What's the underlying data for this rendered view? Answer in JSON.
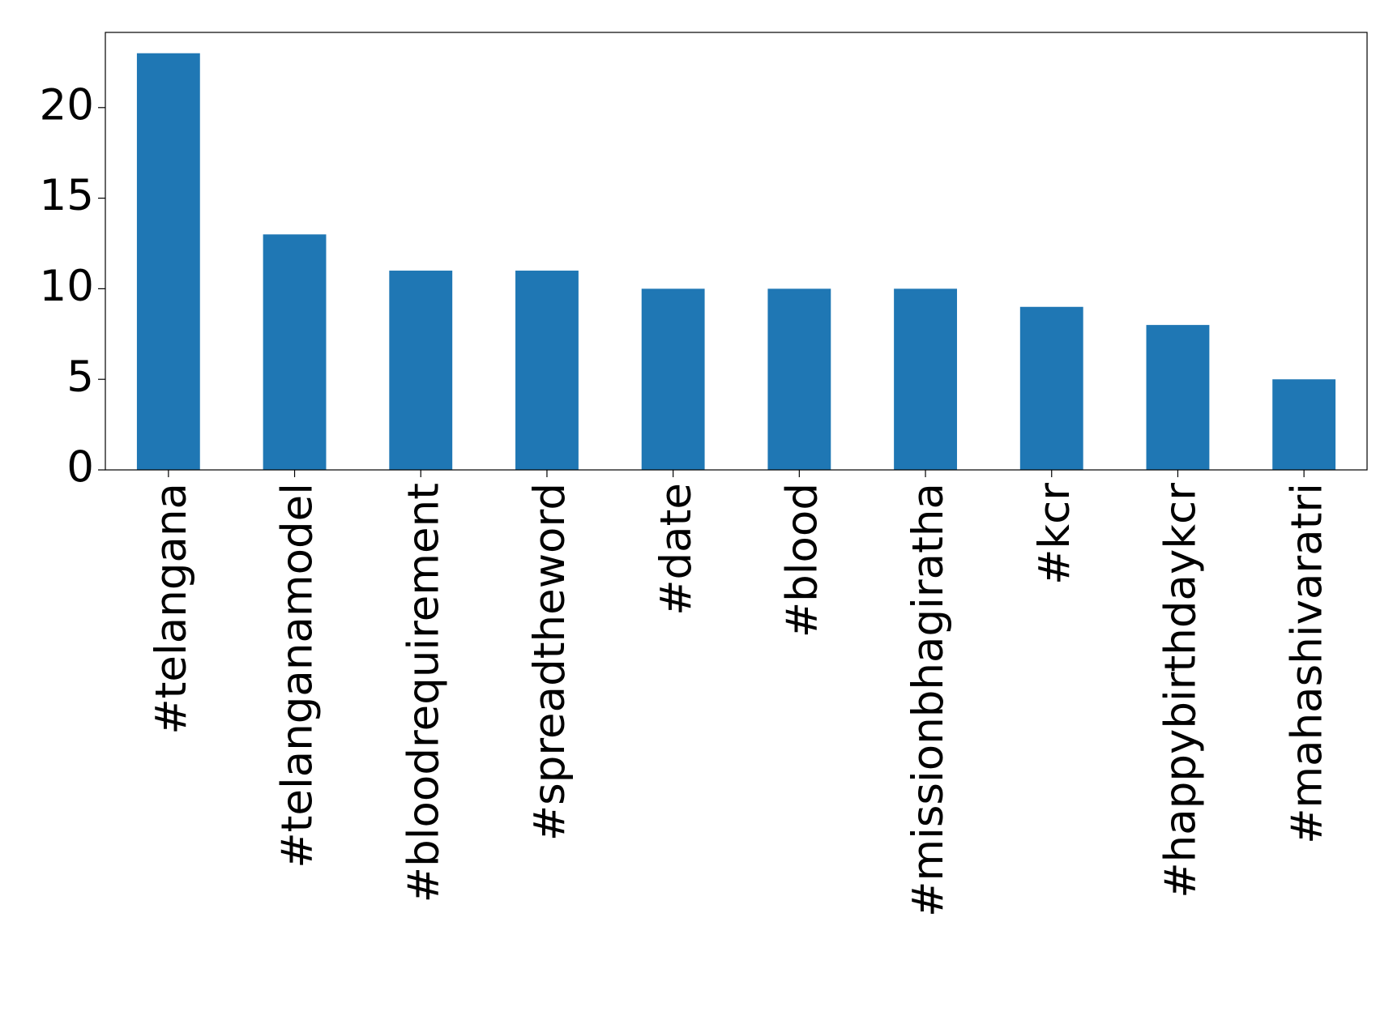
{
  "chart_data": {
    "type": "bar",
    "categories": [
      "#telangana",
      "#telanganamodel",
      "#bloodrequirement",
      "#spreadtheword",
      "#date",
      "#blood",
      "#missionbhagiratha",
      "#kcr",
      "#happybirthdaykcr",
      "#mahashivaratri"
    ],
    "values": [
      23,
      13,
      11,
      11,
      10,
      10,
      10,
      9,
      8,
      5
    ],
    "color": "#1f77b4",
    "ylim": [
      0,
      24.15
    ],
    "yticks": [
      0,
      5,
      10,
      15,
      20
    ],
    "grid": false
  }
}
